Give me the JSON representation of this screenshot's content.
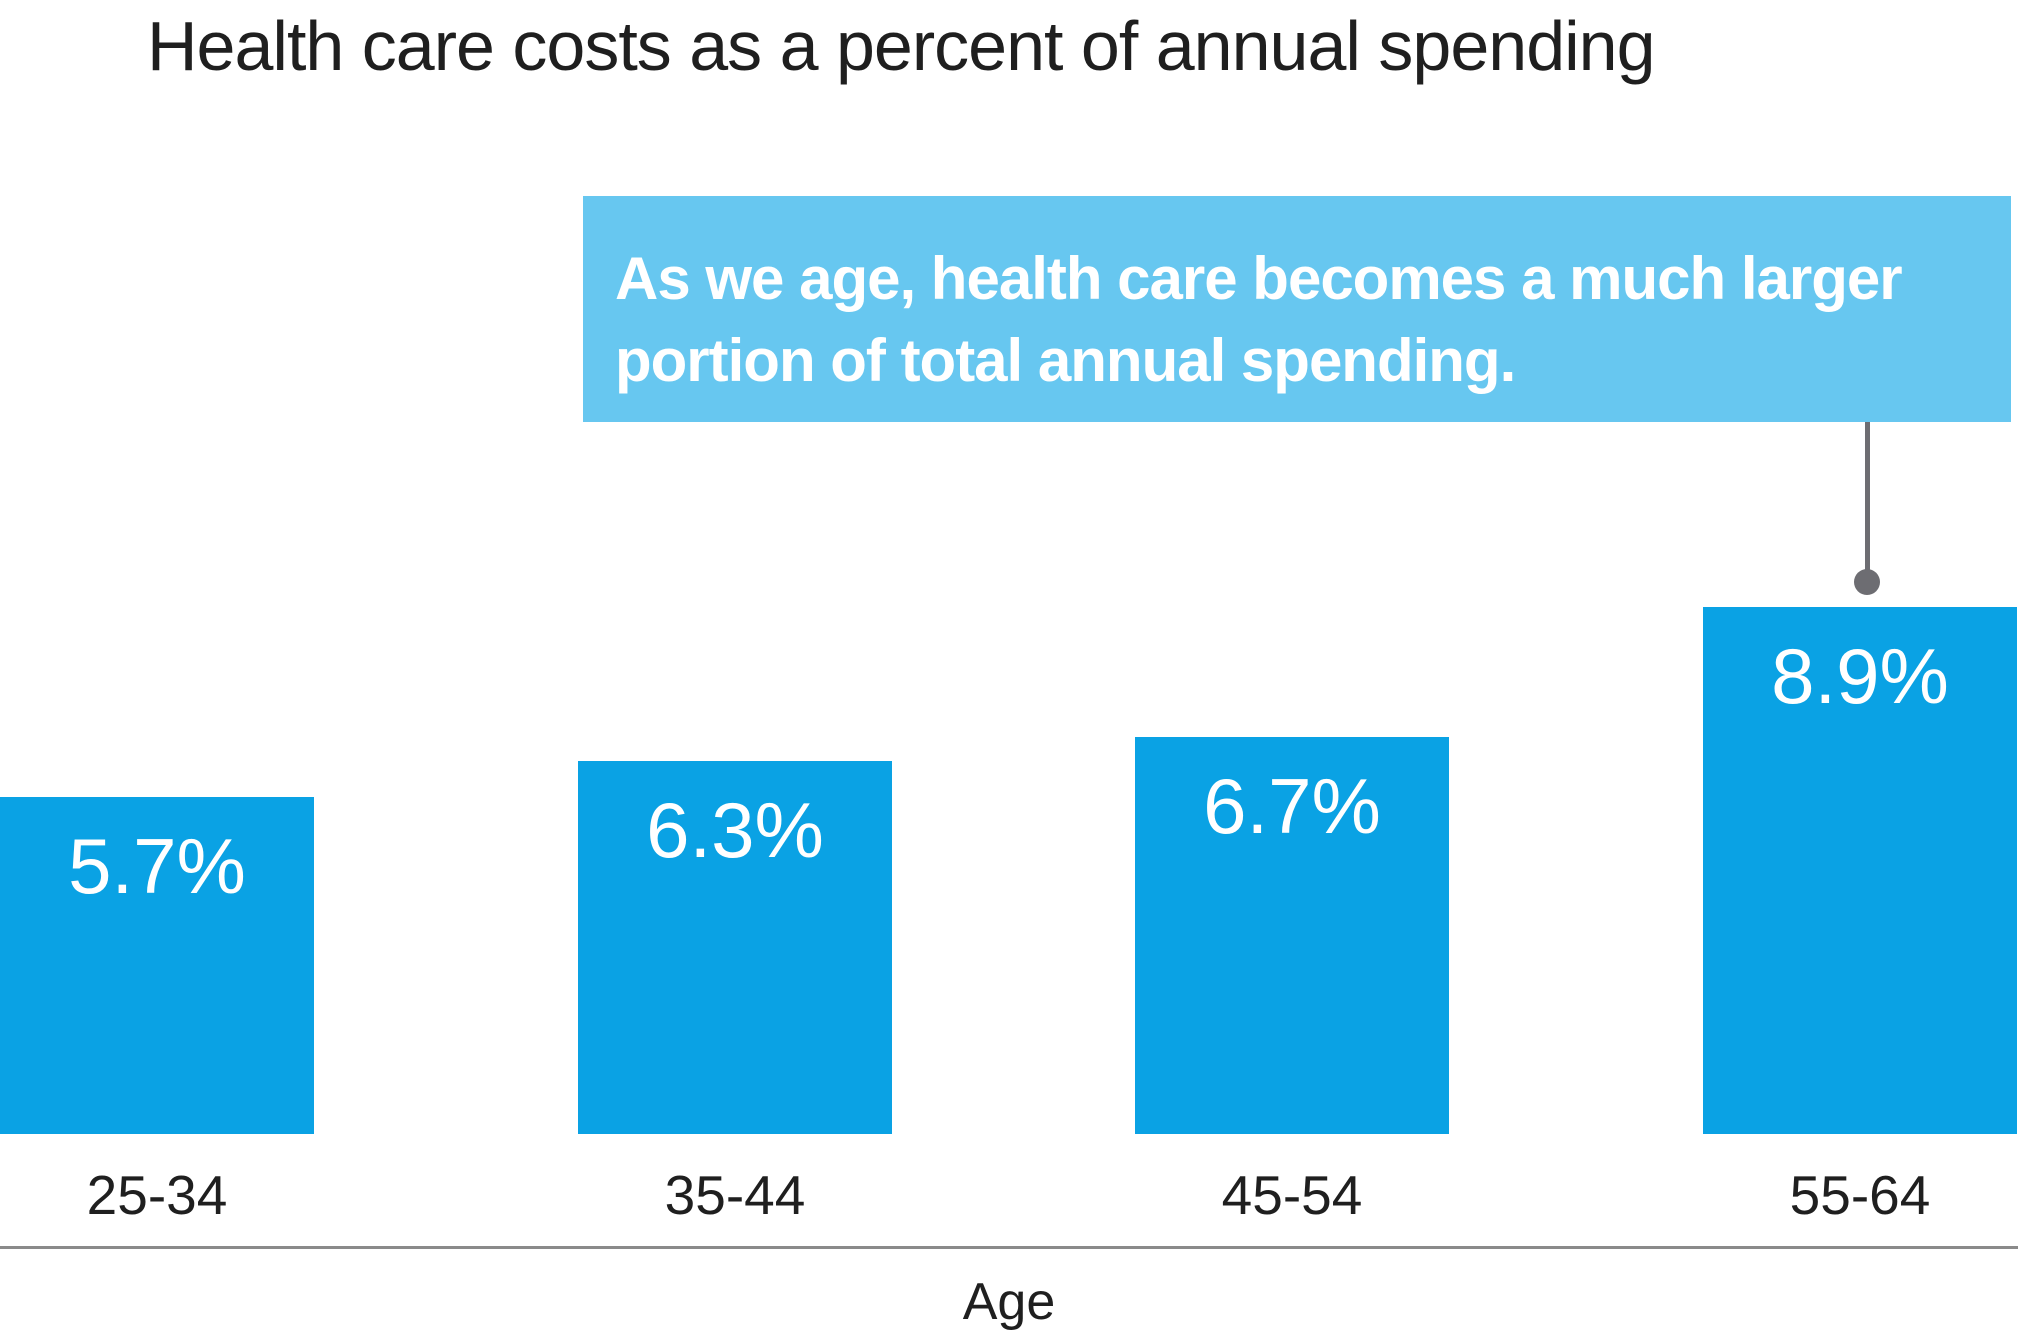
{
  "chart_data": {
    "type": "bar",
    "title": "Health care costs as a percent of annual spending",
    "xlabel": "Age",
    "ylabel": "",
    "categories": [
      "25-34",
      "35-44",
      "45-54",
      "55-64"
    ],
    "values": [
      5.7,
      6.3,
      6.7,
      8.9
    ],
    "value_labels": [
      "5.7%",
      "6.3%",
      "6.7%",
      "8.9%"
    ],
    "ylim": [
      0,
      9.5
    ],
    "grid": false,
    "legend": false,
    "annotation": {
      "text": "As we age, health care becomes a much larger portion of total annual spending.",
      "lines": [
        "As we age, health care becomes a much larger",
        "portion of total annual spending."
      ],
      "target_category": "55-64"
    },
    "colors": {
      "bar": "#0aa2e4",
      "annotation_bg": "#67c7f0",
      "annotation_text": "#ffffff",
      "bar_label_text": "#ffffff",
      "title_text": "#1f1f1f",
      "axis_line": "#8a8a8a",
      "connector": "#6d6d72"
    }
  }
}
